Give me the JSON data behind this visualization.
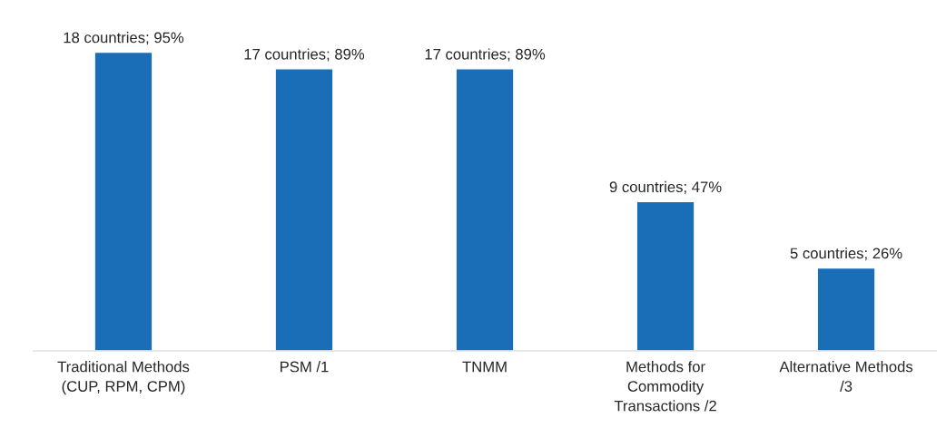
{
  "chart_data": {
    "type": "bar",
    "categories": [
      "Traditional Methods\n(CUP, RPM, CPM)",
      "PSM /1",
      "TNMM",
      "Methods for\nCommodity\nTransactions /2",
      "Alternative Methods\n/3"
    ],
    "values": [
      18,
      17,
      17,
      9,
      5
    ],
    "value_labels": [
      "18 countries; 95%",
      "17 countries; 89%",
      "17 countries; 89%",
      "9 countries; 47%",
      "5 countries; 26%"
    ],
    "color": "#1a6eb8",
    "grid": false,
    "legend": false
  }
}
